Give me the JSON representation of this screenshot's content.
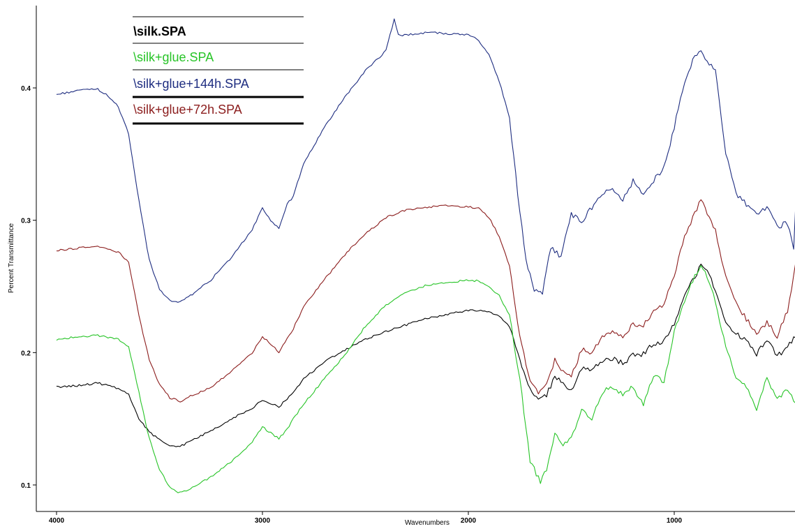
{
  "chart_data": {
    "type": "line",
    "xlabel": "Wavenumbers",
    "ylabel": "Percent Transmittance",
    "xlim": [
      4000,
      400
    ],
    "ylim": [
      0.075,
      0.455
    ],
    "x_reversed": true,
    "xticks": [
      4000,
      3000,
      2000,
      1000
    ],
    "xtick_labels": [
      "4000",
      "3000",
      "2000",
      "1000"
    ],
    "yticks": [
      0.1,
      0.2,
      0.3,
      0.4
    ],
    "ytick_labels": [
      "0.1",
      "0.2",
      "0.3",
      "0.4"
    ],
    "grid": false,
    "legend_position": "top-left",
    "series": [
      {
        "name": "\\silk.SPA",
        "color": "#000000",
        "points": [
          [
            4000,
            0.174
          ],
          [
            3900,
            0.175
          ],
          [
            3800,
            0.177
          ],
          [
            3700,
            0.173
          ],
          [
            3650,
            0.168
          ],
          [
            3600,
            0.15
          ],
          [
            3550,
            0.14
          ],
          [
            3500,
            0.134
          ],
          [
            3450,
            0.13
          ],
          [
            3400,
            0.129
          ],
          [
            3350,
            0.133
          ],
          [
            3250,
            0.141
          ],
          [
            3150,
            0.15
          ],
          [
            3050,
            0.158
          ],
          [
            3000,
            0.164
          ],
          [
            2950,
            0.161
          ],
          [
            2920,
            0.159
          ],
          [
            2880,
            0.165
          ],
          [
            2850,
            0.17
          ],
          [
            2800,
            0.18
          ],
          [
            2700,
            0.193
          ],
          [
            2600,
            0.202
          ],
          [
            2500,
            0.21
          ],
          [
            2400,
            0.216
          ],
          [
            2300,
            0.221
          ],
          [
            2200,
            0.226
          ],
          [
            2100,
            0.229
          ],
          [
            2000,
            0.232
          ],
          [
            1900,
            0.231
          ],
          [
            1850,
            0.228
          ],
          [
            1800,
            0.22
          ],
          [
            1750,
            0.195
          ],
          [
            1700,
            0.172
          ],
          [
            1660,
            0.166
          ],
          [
            1620,
            0.168
          ],
          [
            1580,
            0.182
          ],
          [
            1540,
            0.176
          ],
          [
            1500,
            0.171
          ],
          [
            1450,
            0.188
          ],
          [
            1400,
            0.186
          ],
          [
            1350,
            0.194
          ],
          [
            1300,
            0.196
          ],
          [
            1250,
            0.192
          ],
          [
            1200,
            0.198
          ],
          [
            1150,
            0.199
          ],
          [
            1100,
            0.207
          ],
          [
            1050,
            0.208
          ],
          [
            1000,
            0.222
          ],
          [
            950,
            0.243
          ],
          [
            900,
            0.258
          ],
          [
            870,
            0.265
          ],
          [
            840,
            0.261
          ],
          [
            800,
            0.248
          ],
          [
            750,
            0.224
          ],
          [
            700,
            0.214
          ],
          [
            650,
            0.21
          ],
          [
            600,
            0.199
          ],
          [
            550,
            0.21
          ],
          [
            500,
            0.197
          ],
          [
            450,
            0.205
          ],
          [
            400,
            0.215
          ]
        ]
      },
      {
        "name": "\\silk+glue.SPA",
        "color": "#27c427",
        "points": [
          [
            4000,
            0.21
          ],
          [
            3900,
            0.212
          ],
          [
            3800,
            0.213
          ],
          [
            3700,
            0.21
          ],
          [
            3650,
            0.205
          ],
          [
            3600,
            0.17
          ],
          [
            3550,
            0.135
          ],
          [
            3500,
            0.112
          ],
          [
            3450,
            0.098
          ],
          [
            3400,
            0.094
          ],
          [
            3350,
            0.097
          ],
          [
            3250,
            0.106
          ],
          [
            3150,
            0.118
          ],
          [
            3050,
            0.132
          ],
          [
            3000,
            0.144
          ],
          [
            2950,
            0.138
          ],
          [
            2920,
            0.135
          ],
          [
            2880,
            0.142
          ],
          [
            2850,
            0.15
          ],
          [
            2800,
            0.161
          ],
          [
            2700,
            0.18
          ],
          [
            2600,
            0.198
          ],
          [
            2500,
            0.22
          ],
          [
            2400,
            0.236
          ],
          [
            2300,
            0.246
          ],
          [
            2200,
            0.251
          ],
          [
            2100,
            0.253
          ],
          [
            2000,
            0.255
          ],
          [
            1950,
            0.254
          ],
          [
            1900,
            0.25
          ],
          [
            1850,
            0.243
          ],
          [
            1800,
            0.228
          ],
          [
            1750,
            0.18
          ],
          [
            1700,
            0.118
          ],
          [
            1650,
            0.102
          ],
          [
            1620,
            0.112
          ],
          [
            1580,
            0.138
          ],
          [
            1540,
            0.13
          ],
          [
            1500,
            0.136
          ],
          [
            1450,
            0.156
          ],
          [
            1400,
            0.15
          ],
          [
            1350,
            0.17
          ],
          [
            1300,
            0.174
          ],
          [
            1250,
            0.168
          ],
          [
            1200,
            0.175
          ],
          [
            1150,
            0.16
          ],
          [
            1100,
            0.183
          ],
          [
            1050,
            0.178
          ],
          [
            1000,
            0.215
          ],
          [
            950,
            0.24
          ],
          [
            900,
            0.258
          ],
          [
            870,
            0.266
          ],
          [
            840,
            0.258
          ],
          [
            800,
            0.238
          ],
          [
            750,
            0.205
          ],
          [
            700,
            0.18
          ],
          [
            650,
            0.175
          ],
          [
            600,
            0.158
          ],
          [
            550,
            0.18
          ],
          [
            500,
            0.165
          ],
          [
            450,
            0.172
          ],
          [
            400,
            0.16
          ]
        ]
      },
      {
        "name": "\\silk+glue+144h.SPA",
        "color": "#1e2d80",
        "points": [
          [
            4000,
            0.395
          ],
          [
            3900,
            0.398
          ],
          [
            3800,
            0.399
          ],
          [
            3750,
            0.394
          ],
          [
            3700,
            0.386
          ],
          [
            3650,
            0.365
          ],
          [
            3600,
            0.315
          ],
          [
            3550,
            0.27
          ],
          [
            3500,
            0.248
          ],
          [
            3450,
            0.239
          ],
          [
            3400,
            0.238
          ],
          [
            3350,
            0.243
          ],
          [
            3250,
            0.255
          ],
          [
            3150,
            0.272
          ],
          [
            3050,
            0.293
          ],
          [
            3000,
            0.309
          ],
          [
            2950,
            0.298
          ],
          [
            2920,
            0.294
          ],
          [
            2880,
            0.312
          ],
          [
            2850,
            0.318
          ],
          [
            2800,
            0.343
          ],
          [
            2700,
            0.37
          ],
          [
            2600,
            0.393
          ],
          [
            2500,
            0.413
          ],
          [
            2400,
            0.428
          ],
          [
            2360,
            0.452
          ],
          [
            2340,
            0.44
          ],
          [
            2300,
            0.44
          ],
          [
            2200,
            0.442
          ],
          [
            2100,
            0.441
          ],
          [
            2000,
            0.44
          ],
          [
            1950,
            0.436
          ],
          [
            1900,
            0.425
          ],
          [
            1850,
            0.405
          ],
          [
            1800,
            0.378
          ],
          [
            1760,
            0.32
          ],
          [
            1720,
            0.27
          ],
          [
            1680,
            0.248
          ],
          [
            1640,
            0.246
          ],
          [
            1600,
            0.28
          ],
          [
            1550,
            0.272
          ],
          [
            1500,
            0.305
          ],
          [
            1450,
            0.298
          ],
          [
            1400,
            0.31
          ],
          [
            1350,
            0.32
          ],
          [
            1300,
            0.325
          ],
          [
            1250,
            0.315
          ],
          [
            1200,
            0.33
          ],
          [
            1150,
            0.32
          ],
          [
            1100,
            0.33
          ],
          [
            1050,
            0.34
          ],
          [
            1000,
            0.37
          ],
          [
            950,
            0.405
          ],
          [
            900,
            0.425
          ],
          [
            870,
            0.427
          ],
          [
            840,
            0.42
          ],
          [
            800,
            0.412
          ],
          [
            780,
            0.39
          ],
          [
            750,
            0.35
          ],
          [
            700,
            0.32
          ],
          [
            650,
            0.312
          ],
          [
            600,
            0.305
          ],
          [
            550,
            0.31
          ],
          [
            500,
            0.295
          ],
          [
            450,
            0.298
          ],
          [
            420,
            0.28
          ],
          [
            400,
            0.345
          ]
        ]
      },
      {
        "name": "\\silk+glue+72h.SPA",
        "color": "#8b1c1c",
        "points": [
          [
            4000,
            0.277
          ],
          [
            3900,
            0.279
          ],
          [
            3800,
            0.28
          ],
          [
            3700,
            0.276
          ],
          [
            3650,
            0.268
          ],
          [
            3600,
            0.228
          ],
          [
            3550,
            0.195
          ],
          [
            3500,
            0.176
          ],
          [
            3450,
            0.166
          ],
          [
            3400,
            0.163
          ],
          [
            3350,
            0.167
          ],
          [
            3250,
            0.174
          ],
          [
            3150,
            0.186
          ],
          [
            3050,
            0.2
          ],
          [
            3000,
            0.212
          ],
          [
            2950,
            0.205
          ],
          [
            2920,
            0.2
          ],
          [
            2880,
            0.211
          ],
          [
            2850,
            0.218
          ],
          [
            2800,
            0.235
          ],
          [
            2700,
            0.255
          ],
          [
            2600,
            0.274
          ],
          [
            2500,
            0.29
          ],
          [
            2400,
            0.302
          ],
          [
            2300,
            0.308
          ],
          [
            2200,
            0.31
          ],
          [
            2100,
            0.311
          ],
          [
            2000,
            0.31
          ],
          [
            1950,
            0.309
          ],
          [
            1900,
            0.302
          ],
          [
            1850,
            0.288
          ],
          [
            1800,
            0.265
          ],
          [
            1750,
            0.213
          ],
          [
            1700,
            0.177
          ],
          [
            1660,
            0.169
          ],
          [
            1620,
            0.175
          ],
          [
            1580,
            0.195
          ],
          [
            1540,
            0.186
          ],
          [
            1500,
            0.182
          ],
          [
            1450,
            0.202
          ],
          [
            1400,
            0.2
          ],
          [
            1350,
            0.212
          ],
          [
            1300,
            0.217
          ],
          [
            1250,
            0.212
          ],
          [
            1200,
            0.222
          ],
          [
            1150,
            0.22
          ],
          [
            1100,
            0.232
          ],
          [
            1050,
            0.236
          ],
          [
            1000,
            0.258
          ],
          [
            950,
            0.288
          ],
          [
            900,
            0.305
          ],
          [
            870,
            0.315
          ],
          [
            840,
            0.306
          ],
          [
            800,
            0.292
          ],
          [
            750,
            0.258
          ],
          [
            700,
            0.238
          ],
          [
            650,
            0.225
          ],
          [
            600,
            0.215
          ],
          [
            550,
            0.223
          ],
          [
            500,
            0.212
          ],
          [
            450,
            0.232
          ],
          [
            400,
            0.275
          ]
        ]
      }
    ]
  }
}
